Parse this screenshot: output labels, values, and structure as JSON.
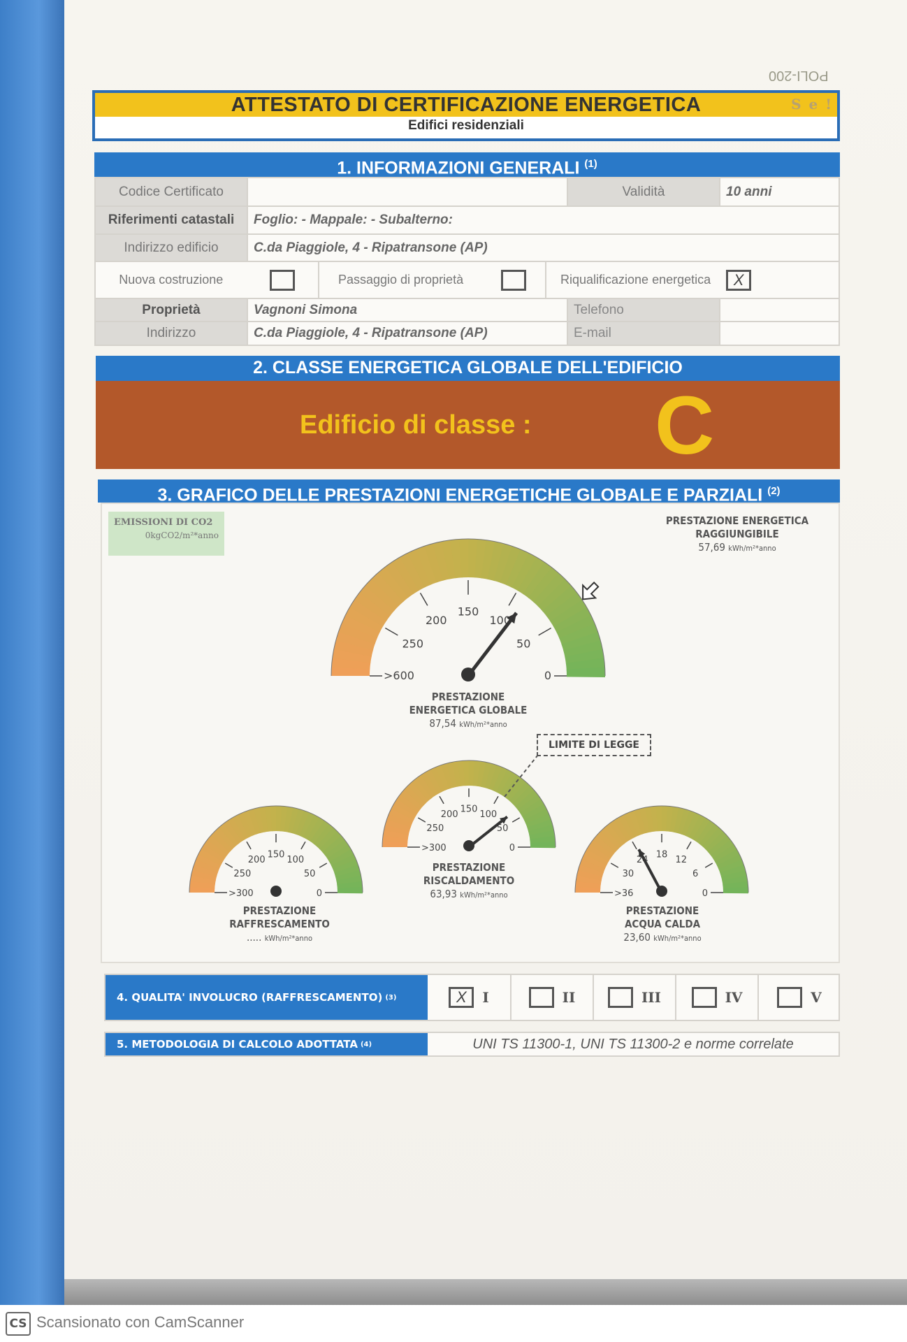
{
  "doc_code": "POLI-200",
  "header": {
    "title": "ATTESTATO DI CERTIFICAZIONE ENERGETICA",
    "subtitle": "Edifici residenziali",
    "logo_text": "S e !"
  },
  "section1": {
    "title": "1. INFORMAZIONI GENERALI",
    "note": "(1)",
    "codice_label": "Codice Certificato",
    "codice_value": "",
    "validita_label": "Validità",
    "validita_value": "10 anni",
    "catastali_label": "Riferimenti catastali",
    "catastali_value": "Foglio:  - Mappale:  - Subalterno:",
    "indirizzo_edificio_label": "Indirizzo edificio",
    "indirizzo_edificio_value": "C.da Piaggiole, 4 - Ripatransone (AP)",
    "options": [
      {
        "label": "Nuova costruzione",
        "checked": false
      },
      {
        "label": "Passaggio di proprietà",
        "checked": false
      },
      {
        "label": "Riqualificazione energetica",
        "checked": true,
        "mark": "X"
      }
    ],
    "proprieta_label": "Proprietà",
    "proprieta_value": "Vagnoni Simona",
    "telefono_label": "Telefono",
    "telefono_value": "",
    "indirizzo_label": "Indirizzo",
    "indirizzo_value": "C.da Piaggiole, 4 - Ripatransone (AP)",
    "email_label": "E-mail",
    "email_value": ""
  },
  "section2": {
    "title": "2. CLASSE ENERGETICA GLOBALE DELL'EDIFICIO",
    "class_label": "Edificio di classe :",
    "class_value": "C"
  },
  "section3": {
    "title": "3. GRAFICO DELLE PRESTAZIONI ENERGETICHE GLOBALE E PARZIALI",
    "note": "(2)",
    "co2_title": "EMISSIONI DI CO2",
    "co2_value": "0kgCO2/m²*anno",
    "raggiungibile": {
      "title1": "PRESTAZIONE ENERGETICA",
      "title2": "RAGGIUNGIBILE",
      "value": "57,69",
      "unit": "kWh/m²*anno",
      "marker_value": 57.69
    },
    "limite_label": "LIMITE DI LEGGE",
    "colors": {
      "low": "#ef9f58",
      "mid": "#c2b24c",
      "high": "#74b45a"
    },
    "gauges": [
      {
        "id": "globale",
        "title1": "PRESTAZIONE",
        "title2": "ENERGETICA GLOBALE",
        "value_text": "87,54",
        "unit": "kWh/m²*anno",
        "value": 87.54,
        "ticks": [
          ">600",
          "250",
          "200",
          "150",
          "100",
          "50",
          "0"
        ],
        "tick_values": [
          600,
          250,
          200,
          150,
          100,
          50,
          0
        ]
      },
      {
        "id": "raffrescamento",
        "title1": "PRESTAZIONE",
        "title2": "RAFFRESCAMENTO",
        "value_text": ".....",
        "unit": "kWh/m²*anno",
        "value": null,
        "ticks": [
          ">300",
          "250",
          "200",
          "150",
          "100",
          "50",
          "0"
        ],
        "tick_values": [
          300,
          250,
          200,
          150,
          100,
          50,
          0
        ]
      },
      {
        "id": "riscaldamento",
        "title1": "PRESTAZIONE",
        "title2": "RISCALDAMENTO",
        "value_text": "63,93",
        "unit": "kWh/m²*anno",
        "value": 63.93,
        "ticks": [
          ">300",
          "250",
          "200",
          "150",
          "100",
          "50",
          "0"
        ],
        "tick_values": [
          300,
          250,
          200,
          150,
          100,
          50,
          0
        ]
      },
      {
        "id": "acqua-calda",
        "title1": "PRESTAZIONE",
        "title2": "ACQUA CALDA",
        "value_text": "23,60",
        "unit": "kWh/m²*anno",
        "value": 23.6,
        "ticks": [
          ">36",
          "30",
          "24",
          "18",
          "12",
          "6",
          "0"
        ],
        "tick_values": [
          36,
          30,
          24,
          18,
          12,
          6,
          0
        ]
      }
    ]
  },
  "section4": {
    "title": "4. QUALITA' INVOLUCRO (RAFFRESCAMENTO)",
    "note": "(3)",
    "options": [
      {
        "label": "I",
        "checked": true,
        "mark": "X"
      },
      {
        "label": "II",
        "checked": false
      },
      {
        "label": "III",
        "checked": false
      },
      {
        "label": "IV",
        "checked": false
      },
      {
        "label": "V",
        "checked": false
      }
    ]
  },
  "section5": {
    "title": "5. METODOLOGIA DI CALCOLO ADOTTATA",
    "note": "(4)",
    "value": "UNI TS 11300-1, UNI TS 11300-2 e norme correlate"
  },
  "footer": {
    "logo": "CS",
    "text": "Scansionato con CamScanner"
  }
}
